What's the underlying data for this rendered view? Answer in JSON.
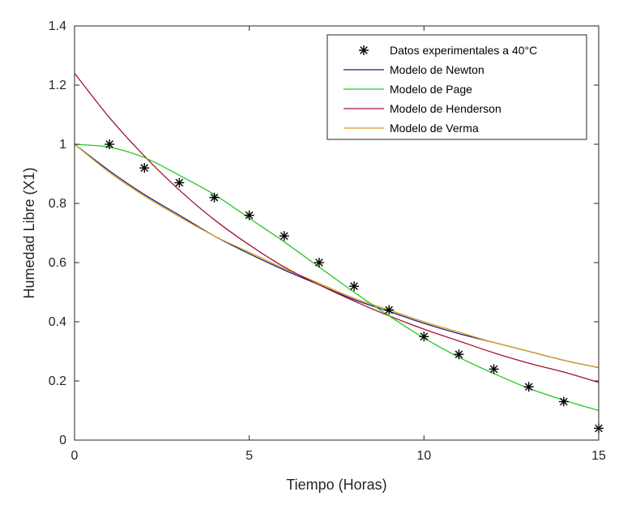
{
  "chart_data": {
    "type": "line",
    "xlabel": "Tiempo (Horas)",
    "ylabel": "Humedad Libre (X1)",
    "xlim": [
      0,
      15
    ],
    "ylim": [
      0,
      1.4
    ],
    "xticks": [
      0,
      5,
      10,
      15
    ],
    "yticks": [
      0,
      0.2,
      0.4,
      0.6,
      0.8,
      1,
      1.2,
      1.4
    ],
    "grid": false,
    "legend_position": "top-right",
    "series": [
      {
        "name": "Datos experimentales a 40°C",
        "kind": "markers",
        "marker": "asterisk",
        "color": "#000000",
        "x": [
          1,
          2,
          3,
          4,
          5,
          6,
          7,
          8,
          9,
          10,
          11,
          12,
          13,
          14,
          15
        ],
        "y": [
          1.0,
          0.92,
          0.87,
          0.82,
          0.76,
          0.69,
          0.6,
          0.52,
          0.44,
          0.35,
          0.29,
          0.24,
          0.18,
          0.13,
          0.04
        ]
      },
      {
        "name": "Modelo de Newton",
        "kind": "line",
        "color": "#1f1f7a",
        "x": [
          0,
          1,
          2,
          3,
          4,
          5,
          6,
          7,
          8,
          9,
          10,
          11,
          12,
          13,
          14,
          15
        ],
        "y": [
          1.0,
          0.91,
          0.83,
          0.76,
          0.69,
          0.63,
          0.575,
          0.525,
          0.475,
          0.435,
          0.395,
          0.36,
          0.33,
          0.3,
          0.27,
          0.245
        ]
      },
      {
        "name": "Modelo de Page",
        "kind": "line",
        "color": "#22c922",
        "x": [
          0,
          1,
          2,
          3,
          4,
          5,
          6,
          7,
          8,
          9,
          10,
          11,
          12,
          13,
          14,
          15
        ],
        "y": [
          1.0,
          0.99,
          0.955,
          0.895,
          0.83,
          0.75,
          0.67,
          0.585,
          0.5,
          0.42,
          0.345,
          0.28,
          0.225,
          0.175,
          0.135,
          0.1
        ]
      },
      {
        "name": "Modelo de Henderson",
        "kind": "line",
        "color": "#a3142e",
        "x": [
          0,
          1,
          2,
          3,
          4,
          5,
          6,
          7,
          8,
          9,
          10,
          11,
          12,
          13,
          14,
          15
        ],
        "y": [
          1.24,
          1.09,
          0.96,
          0.845,
          0.745,
          0.66,
          0.585,
          0.525,
          0.47,
          0.42,
          0.375,
          0.335,
          0.295,
          0.26,
          0.23,
          0.195
        ]
      },
      {
        "name": "Modelo de Verma",
        "kind": "line",
        "color": "#d9a21b",
        "x": [
          0,
          1,
          2,
          3,
          4,
          5,
          6,
          7,
          8,
          9,
          10,
          11,
          12,
          13,
          14,
          15
        ],
        "y": [
          1.0,
          0.905,
          0.825,
          0.755,
          0.69,
          0.635,
          0.58,
          0.53,
          0.48,
          0.44,
          0.4,
          0.365,
          0.33,
          0.3,
          0.27,
          0.245
        ]
      }
    ]
  }
}
